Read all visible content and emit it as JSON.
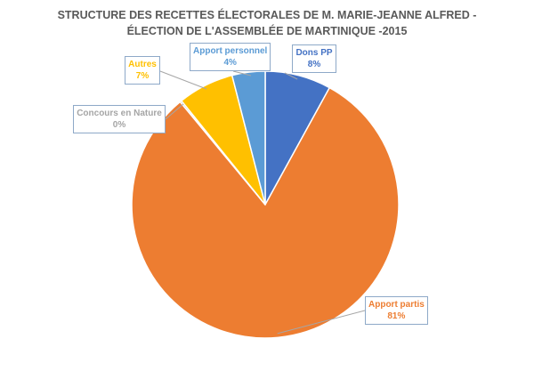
{
  "chart_data": {
    "type": "pie",
    "title_lines": [
      "STRUCTURE DES RECETTES ÉLECTORALES DE M. MARIE-JEANNE ALFRED -",
      "ÉLECTION DE L'ASSEMBLÉE DE MARTINIQUE -2015"
    ],
    "slices": [
      {
        "name": "Dons PP",
        "value": 8,
        "label": "8%",
        "color": "#4472c4"
      },
      {
        "name": "Apport partis",
        "value": 81,
        "label": "81%",
        "color": "#ed7d31"
      },
      {
        "name": "Concours en Nature",
        "value": 0.2,
        "label": "0%",
        "color": "#a5a5a5"
      },
      {
        "name": "Autres",
        "value": 6.8,
        "label": "7%",
        "color": "#ffc000"
      },
      {
        "name": "Apport personnel",
        "value": 4,
        "label": "4%",
        "color": "#5b9bd5"
      }
    ]
  }
}
